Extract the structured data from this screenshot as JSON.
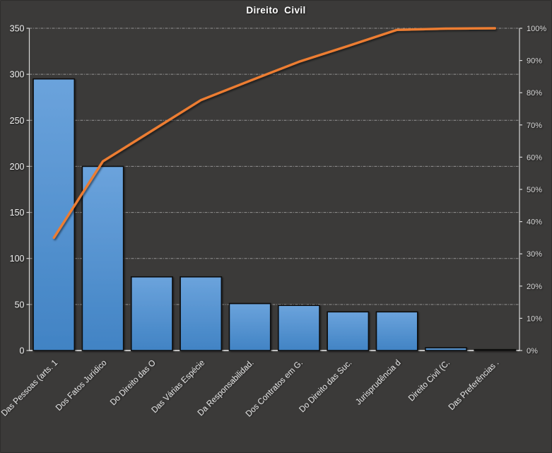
{
  "window": {
    "background": "#3B3A39"
  },
  "chart_data": {
    "type": "bar",
    "subtype": "pareto (bars + cumulative percentage line)",
    "title": "Direito  Civil",
    "categories": [
      "Das Pessoas (arts. 1",
      "Dos Fatos Jurídico",
      "Do Direito das O",
      "Das Várias Espécie",
      "Da Responsabilidad.",
      "Dos Contratos em G.",
      "Do Direito das Suc.",
      "Jurisprudência d",
      "Direito Civil (C.",
      "Das Preferências ."
    ],
    "bar_values": [
      295,
      200,
      80,
      80,
      51,
      49,
      42,
      42,
      3,
      1
    ],
    "cumulative_pct": [
      35.0,
      58.7,
      68.2,
      77.7,
      83.7,
      89.6,
      94.5,
      99.5,
      99.9,
      100.0
    ],
    "left_axis": {
      "min": 0,
      "max": 350,
      "step": 50,
      "ticks": [
        "0",
        "50",
        "100",
        "150",
        "200",
        "250",
        "300",
        "350"
      ]
    },
    "right_axis": {
      "min_label": "0%",
      "max_label": "100%",
      "step_pct": 10,
      "ticks": [
        "0%",
        "10%",
        "20%",
        "30%",
        "40%",
        "50%",
        "60%",
        "70%",
        "80%",
        "90%",
        "100%"
      ]
    },
    "grid": "dashed horizontal lines at every 50 units",
    "legend": "none",
    "colors": {
      "background": "#3B3A39",
      "bar_top": "#6BA3DC",
      "bar_bottom": "#4183C4",
      "bar_border": "#0B0B0B",
      "line": "#ED7D31",
      "gridline": "#A9A9A9",
      "axis": "#D6D6D6",
      "bottom_axis": "#F0F0F0",
      "text": "#F2F2F2"
    }
  }
}
